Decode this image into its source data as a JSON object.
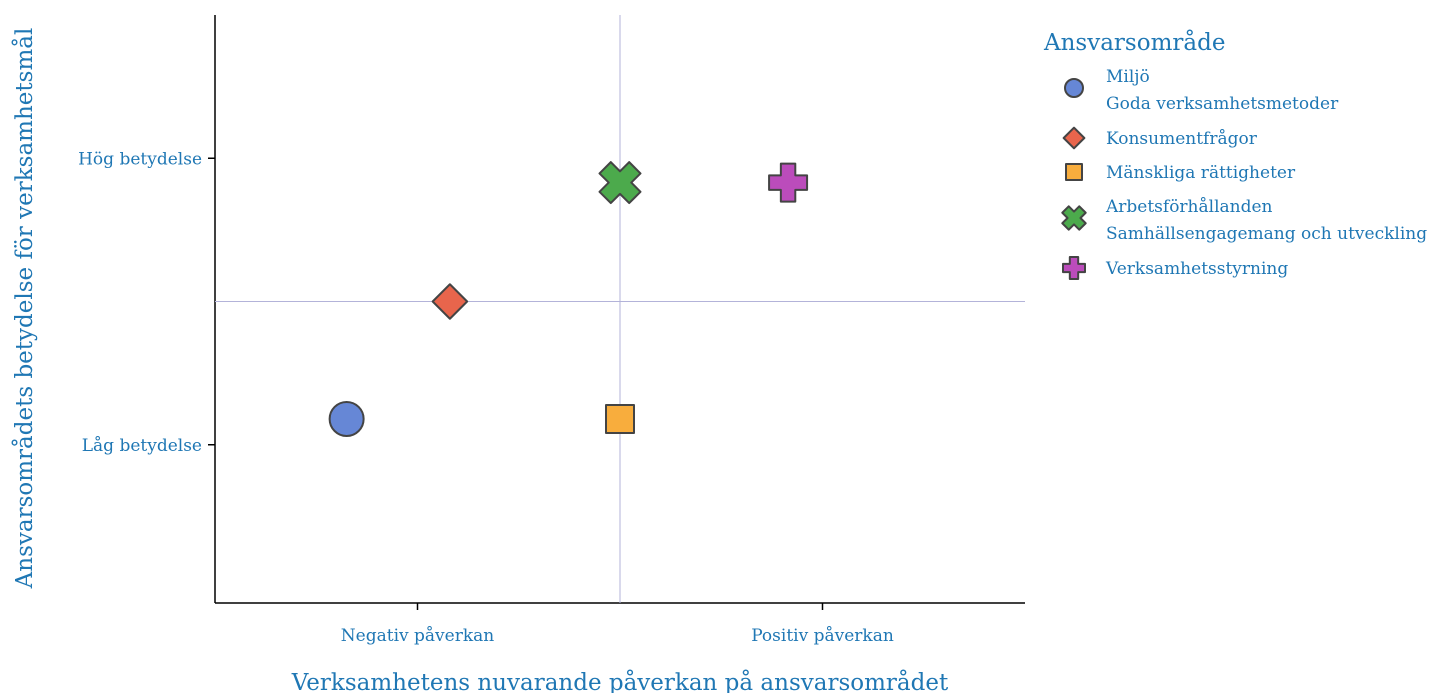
{
  "chart_data": {
    "type": "scatter",
    "xlabel": "Verksamhetens nuvarande påverkan på ansvarsområdet",
    "ylabel": "Ansvarsområdets betydelse för verksamhetsmål",
    "xlim": [
      0,
      4
    ],
    "ylim": [
      0,
      4
    ],
    "x_ticks": [
      {
        "value": 1,
        "label": "Negativ påverkan"
      },
      {
        "value": 3,
        "label": "Positiv påverkan"
      }
    ],
    "y_ticks": [
      {
        "value": 1,
        "label": "Låg betydelse"
      },
      {
        "value": 3,
        "label": "Hög betydelse"
      }
    ],
    "reference_lines": {
      "x": 2,
      "y": 2,
      "color": "#b3b3d9"
    },
    "grid": false,
    "legend": {
      "title": "Ansvarsområde",
      "placement": "right"
    },
    "series": [
      {
        "name": "Miljö",
        "name_line2": "Goda verksamhetsmetoder",
        "marker": "circle",
        "color": "#6687d6",
        "points": [
          [
            0.65,
            1.18
          ]
        ]
      },
      {
        "name": "Konsumentfrågor",
        "marker": "diamond",
        "color": "#e8654c",
        "points": [
          [
            1.16,
            2.0
          ]
        ]
      },
      {
        "name": "Mänskliga rättigheter",
        "marker": "square",
        "color": "#f8ad3d",
        "points": [
          [
            2.0,
            1.18
          ]
        ]
      },
      {
        "name": "Arbetsförhållanden",
        "name_line2": "Samhällsengagemang och utveckling",
        "marker": "x",
        "color": "#4caa4c",
        "points": [
          [
            2.0,
            2.83
          ]
        ]
      },
      {
        "name": "Verksamhetsstyrning",
        "marker": "cross",
        "color": "#bb4cbb",
        "points": [
          [
            2.83,
            2.83
          ]
        ]
      }
    ]
  }
}
